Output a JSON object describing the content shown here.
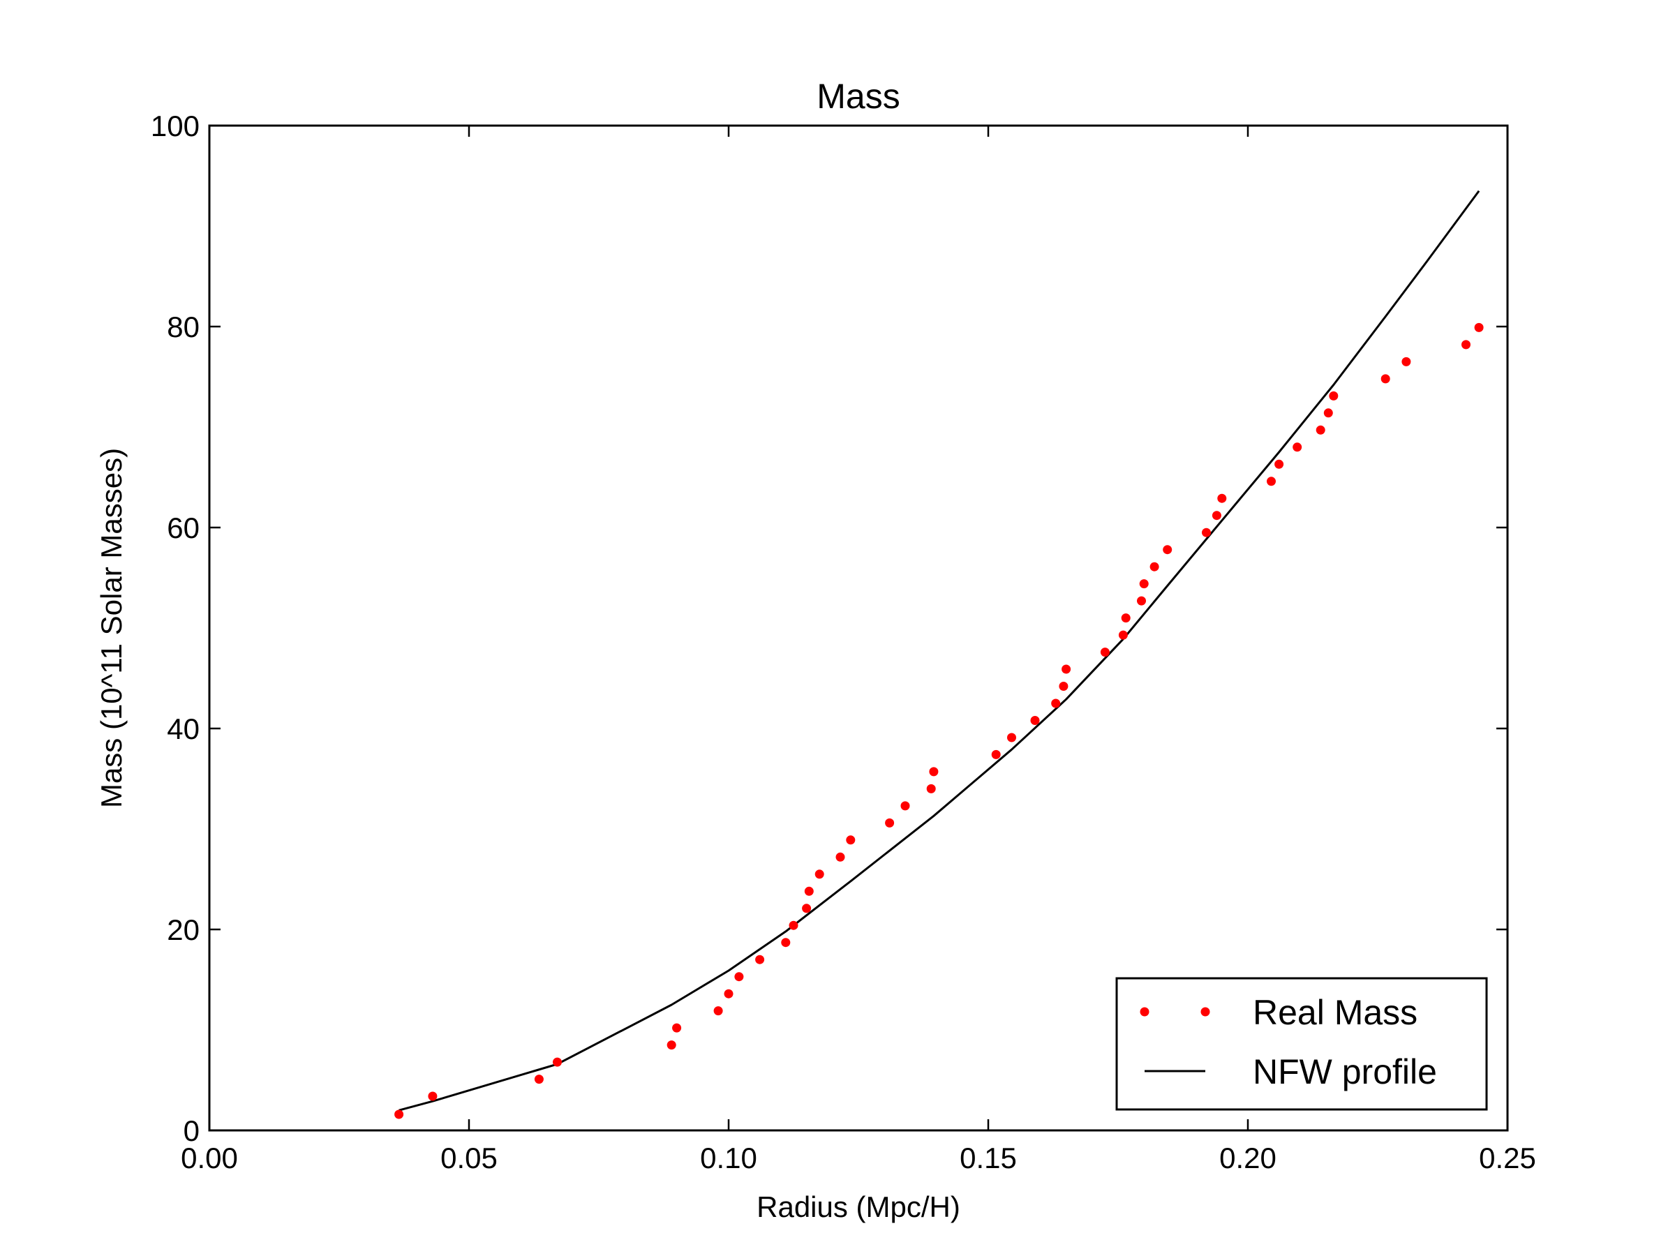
{
  "chart_data": {
    "type": "scatter",
    "title": "Mass",
    "xlabel": "Radius (Mpc/H)",
    "ylabel": "Mass (10^11 Solar Masses)",
    "xlim": [
      0.0,
      0.25
    ],
    "ylim": [
      0,
      100
    ],
    "grid": false,
    "legend_position": "bottom-right",
    "x_ticks": [
      "0.00",
      "0.05",
      "0.10",
      "0.15",
      "0.20",
      "0.25"
    ],
    "y_ticks": [
      "0",
      "20",
      "40",
      "60",
      "80",
      "100"
    ],
    "series": [
      {
        "name": "Real Mass",
        "kind": "scatter",
        "color": "#ff0000",
        "points": [
          [
            0.0365,
            1.6
          ],
          [
            0.043,
            3.4
          ],
          [
            0.0635,
            5.1
          ],
          [
            0.067,
            6.8
          ],
          [
            0.089,
            8.5
          ],
          [
            0.09,
            10.2
          ],
          [
            0.098,
            11.9
          ],
          [
            0.1,
            13.6
          ],
          [
            0.102,
            15.3
          ],
          [
            0.106,
            17.0
          ],
          [
            0.111,
            18.7
          ],
          [
            0.1125,
            20.4
          ],
          [
            0.115,
            22.1
          ],
          [
            0.1155,
            23.8
          ],
          [
            0.1175,
            25.5
          ],
          [
            0.1215,
            27.2
          ],
          [
            0.1235,
            28.9
          ],
          [
            0.131,
            30.6
          ],
          [
            0.134,
            32.3
          ],
          [
            0.139,
            34.0
          ],
          [
            0.1395,
            35.7
          ],
          [
            0.1515,
            37.4
          ],
          [
            0.1545,
            39.1
          ],
          [
            0.159,
            40.8
          ],
          [
            0.163,
            42.5
          ],
          [
            0.1645,
            44.2
          ],
          [
            0.165,
            45.9
          ],
          [
            0.1725,
            47.6
          ],
          [
            0.176,
            49.3
          ],
          [
            0.1765,
            51.0
          ],
          [
            0.1795,
            52.7
          ],
          [
            0.18,
            54.4
          ],
          [
            0.182,
            56.1
          ],
          [
            0.1845,
            57.8
          ],
          [
            0.192,
            59.5
          ],
          [
            0.194,
            61.2
          ],
          [
            0.195,
            62.9
          ],
          [
            0.2045,
            64.6
          ],
          [
            0.206,
            66.3
          ],
          [
            0.2095,
            68.0
          ],
          [
            0.214,
            69.7
          ],
          [
            0.2155,
            71.4
          ],
          [
            0.2165,
            73.1
          ],
          [
            0.2265,
            74.8
          ],
          [
            0.2305,
            76.5
          ],
          [
            0.242,
            78.2
          ],
          [
            0.2445,
            79.9
          ]
        ]
      },
      {
        "name": "NFW profile",
        "kind": "line",
        "color": "#000000",
        "points": [
          [
            0.0365,
            2.0
          ],
          [
            0.043,
            2.9
          ],
          [
            0.067,
            6.6
          ],
          [
            0.089,
            12.5
          ],
          [
            0.1,
            15.9
          ],
          [
            0.111,
            19.8
          ],
          [
            0.1235,
            24.8
          ],
          [
            0.1395,
            31.3
          ],
          [
            0.1545,
            37.9
          ],
          [
            0.165,
            42.9
          ],
          [
            0.176,
            48.9
          ],
          [
            0.1845,
            54.2
          ],
          [
            0.195,
            60.7
          ],
          [
            0.206,
            67.5
          ],
          [
            0.2165,
            74.2
          ],
          [
            0.2265,
            81.0
          ],
          [
            0.2345,
            86.5
          ],
          [
            0.2445,
            93.5
          ]
        ]
      }
    ]
  }
}
